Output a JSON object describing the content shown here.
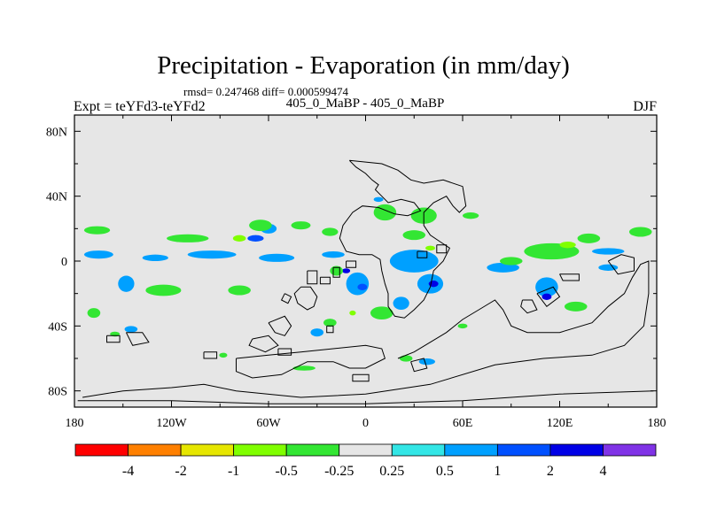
{
  "chart_data": {
    "type": "heatmap",
    "title": "Precipitation - Evaporation (in mm/day)",
    "stats": "rmsd= 0.247468  diff= 0.000599474",
    "left_label": "Expt = teYFd3-teYFd2",
    "center_label": "405_0_MaBP - 405_0_MaBP",
    "right_label": "DJF",
    "xlim": [
      -180,
      180
    ],
    "ylim": [
      -90,
      90
    ],
    "x_ticks": [
      {
        "value": -180,
        "label": "180"
      },
      {
        "value": -120,
        "label": "120W"
      },
      {
        "value": -60,
        "label": "60W"
      },
      {
        "value": 0,
        "label": "0"
      },
      {
        "value": 60,
        "label": "60E"
      },
      {
        "value": 120,
        "label": "120E"
      },
      {
        "value": 180,
        "label": "180"
      }
    ],
    "y_ticks": [
      {
        "value": 80,
        "label": "80N"
      },
      {
        "value": 40,
        "label": "40N"
      },
      {
        "value": 0,
        "label": "0"
      },
      {
        "value": -40,
        "label": "40S"
      },
      {
        "value": -80,
        "label": "80S"
      }
    ],
    "colorbar": {
      "colors": [
        "#ff0000",
        "#ff8000",
        "#e6e600",
        "#80ff00",
        "#33e633",
        "#e6e6e6",
        "#33e6e6",
        "#00a0ff",
        "#0050ff",
        "#0000e6",
        "#8033e6"
      ],
      "levels": [
        "-4",
        "-2",
        "-1",
        "-0.5",
        "-0.25",
        "0.25",
        "0.5",
        "1",
        "2",
        "4"
      ]
    },
    "background_color": "#e6e6e6",
    "regions": [
      {
        "lon": -165,
        "lat": 4,
        "w": 18,
        "h": 5,
        "level": "0.5"
      },
      {
        "lon": -130,
        "lat": 2,
        "w": 16,
        "h": 4,
        "level": "0.5"
      },
      {
        "lon": -95,
        "lat": 4,
        "w": 30,
        "h": 5,
        "level": "0.5"
      },
      {
        "lon": -55,
        "lat": 2,
        "w": 22,
        "h": 5,
        "level": "0.5"
      },
      {
        "lon": -20,
        "lat": 4,
        "w": 14,
        "h": 4,
        "level": "0.5"
      },
      {
        "lon": -60,
        "lat": 20,
        "w": 10,
        "h": 6,
        "level": "0.5"
      },
      {
        "lon": -68,
        "lat": 14,
        "w": 10,
        "h": 4,
        "level": "1"
      },
      {
        "lon": -148,
        "lat": -14,
        "w": 10,
        "h": 10,
        "level": "0.5"
      },
      {
        "lon": -145,
        "lat": -42,
        "w": 8,
        "h": 4,
        "level": "0.5"
      },
      {
        "lon": -5,
        "lat": -14,
        "w": 14,
        "h": 14,
        "level": "0.5"
      },
      {
        "lon": -2,
        "lat": -16,
        "w": 6,
        "h": 4,
        "level": "1"
      },
      {
        "lon": 30,
        "lat": 0,
        "w": 30,
        "h": 14,
        "level": "0.5"
      },
      {
        "lon": 40,
        "lat": -14,
        "w": 16,
        "h": 12,
        "level": "0.5"
      },
      {
        "lon": 42,
        "lat": -14,
        "w": 6,
        "h": 4,
        "level": "2"
      },
      {
        "lon": 22,
        "lat": -26,
        "w": 10,
        "h": 8,
        "level": "0.5"
      },
      {
        "lon": -12,
        "lat": -6,
        "w": 5,
        "h": 3,
        "level": "2"
      },
      {
        "lon": 112,
        "lat": -16,
        "w": 14,
        "h": 12,
        "level": "0.5"
      },
      {
        "lon": 112,
        "lat": -22,
        "w": 6,
        "h": 4,
        "level": "2"
      },
      {
        "lon": 85,
        "lat": -4,
        "w": 20,
        "h": 6,
        "level": "0.5"
      },
      {
        "lon": 150,
        "lat": -4,
        "w": 12,
        "h": 4,
        "level": "0.5"
      },
      {
        "lon": 150,
        "lat": 6,
        "w": 20,
        "h": 4,
        "level": "0.5"
      },
      {
        "lon": 8,
        "lat": 38,
        "w": 6,
        "h": 3,
        "level": "0.5"
      },
      {
        "lon": -30,
        "lat": -44,
        "w": 8,
        "h": 5,
        "level": "0.5"
      },
      {
        "lon": 38,
        "lat": -62,
        "w": 10,
        "h": 4,
        "level": "0.5"
      },
      {
        "lon": -166,
        "lat": 19,
        "w": 16,
        "h": 5,
        "level": "-0.25"
      },
      {
        "lon": -110,
        "lat": 14,
        "w": 26,
        "h": 5,
        "level": "-0.25"
      },
      {
        "lon": -65,
        "lat": 22,
        "w": 14,
        "h": 7,
        "level": "-0.25"
      },
      {
        "lon": -40,
        "lat": 22,
        "w": 12,
        "h": 5,
        "level": "-0.25"
      },
      {
        "lon": -22,
        "lat": 18,
        "w": 10,
        "h": 5,
        "level": "-0.25"
      },
      {
        "lon": 12,
        "lat": 30,
        "w": 14,
        "h": 10,
        "level": "-0.25"
      },
      {
        "lon": 36,
        "lat": 28,
        "w": 16,
        "h": 10,
        "level": "-0.25"
      },
      {
        "lon": 30,
        "lat": 16,
        "w": 14,
        "h": 6,
        "level": "-0.25"
      },
      {
        "lon": 65,
        "lat": 28,
        "w": 10,
        "h": 4,
        "level": "-0.25"
      },
      {
        "lon": 115,
        "lat": 6,
        "w": 34,
        "h": 10,
        "level": "-0.25"
      },
      {
        "lon": 138,
        "lat": 14,
        "w": 14,
        "h": 6,
        "level": "-0.25"
      },
      {
        "lon": 170,
        "lat": 18,
        "w": 14,
        "h": 6,
        "level": "-0.25"
      },
      {
        "lon": -125,
        "lat": -18,
        "w": 22,
        "h": 7,
        "level": "-0.25"
      },
      {
        "lon": -78,
        "lat": -18,
        "w": 14,
        "h": 6,
        "level": "-0.25"
      },
      {
        "lon": -18,
        "lat": -6,
        "w": 8,
        "h": 6,
        "level": "-0.25"
      },
      {
        "lon": 10,
        "lat": -32,
        "w": 14,
        "h": 8,
        "level": "-0.25"
      },
      {
        "lon": -22,
        "lat": -38,
        "w": 8,
        "h": 5,
        "level": "-0.25"
      },
      {
        "lon": 90,
        "lat": 0,
        "w": 14,
        "h": 5,
        "level": "-0.25"
      },
      {
        "lon": 130,
        "lat": -28,
        "w": 14,
        "h": 6,
        "level": "-0.25"
      },
      {
        "lon": -168,
        "lat": -32,
        "w": 8,
        "h": 6,
        "level": "-0.25"
      },
      {
        "lon": -155,
        "lat": -45,
        "w": 6,
        "h": 3,
        "level": "-0.25"
      },
      {
        "lon": 25,
        "lat": -60,
        "w": 8,
        "h": 4,
        "level": "-0.25"
      },
      {
        "lon": -38,
        "lat": -66,
        "w": 14,
        "h": 3,
        "level": "-0.25"
      },
      {
        "lon": -88,
        "lat": -58,
        "w": 5,
        "h": 3,
        "level": "-0.25"
      },
      {
        "lon": 60,
        "lat": -40,
        "w": 6,
        "h": 3,
        "level": "-0.25"
      },
      {
        "lon": -78,
        "lat": 14,
        "w": 8,
        "h": 4,
        "level": "-0.5"
      },
      {
        "lon": 125,
        "lat": 10,
        "w": 10,
        "h": 4,
        "level": "-0.5"
      },
      {
        "lon": 40,
        "lat": 8,
        "w": 6,
        "h": 3,
        "level": "-0.5"
      },
      {
        "lon": -8,
        "lat": -32,
        "w": 4,
        "h": 3,
        "level": "-0.5"
      }
    ],
    "coastlines": [
      [
        [
          -10,
          62
        ],
        [
          -6,
          58
        ],
        [
          0,
          54
        ],
        [
          4,
          50
        ],
        [
          8,
          47
        ],
        [
          6,
          44
        ],
        [
          10,
          40
        ],
        [
          14,
          36
        ],
        [
          22,
          38
        ],
        [
          30,
          36
        ],
        [
          34,
          31
        ],
        [
          26,
          28
        ],
        [
          18,
          29
        ],
        [
          8,
          33
        ],
        [
          -2,
          34
        ],
        [
          -8,
          30
        ],
        [
          -14,
          22
        ],
        [
          -16,
          14
        ],
        [
          -12,
          6
        ],
        [
          -4,
          4
        ],
        [
          4,
          4
        ],
        [
          9,
          1
        ],
        [
          10,
          -6
        ],
        [
          12,
          -14
        ],
        [
          14,
          -20
        ],
        [
          14,
          -28
        ],
        [
          18,
          -34
        ],
        [
          24,
          -35
        ],
        [
          30,
          -30
        ],
        [
          36,
          -24
        ],
        [
          40,
          -16
        ],
        [
          42,
          -6
        ],
        [
          48,
          0
        ],
        [
          52,
          8
        ],
        [
          46,
          12
        ],
        [
          40,
          16
        ],
        [
          36,
          22
        ],
        [
          36,
          30
        ],
        [
          42,
          36
        ],
        [
          50,
          40
        ],
        [
          54,
          34
        ],
        [
          58,
          30
        ],
        [
          62,
          34
        ],
        [
          60,
          46
        ],
        [
          48,
          50
        ],
        [
          36,
          48
        ],
        [
          28,
          50
        ],
        [
          20,
          56
        ],
        [
          10,
          60
        ],
        [
          -10,
          62
        ]
      ],
      [
        [
          32,
          6
        ],
        [
          38,
          6
        ],
        [
          38,
          2
        ],
        [
          32,
          2
        ],
        [
          32,
          6
        ]
      ],
      [
        [
          44,
          10
        ],
        [
          50,
          10
        ],
        [
          50,
          5
        ],
        [
          44,
          5
        ],
        [
          44,
          10
        ]
      ],
      [
        [
          -20,
          -4
        ],
        [
          -16,
          -4
        ],
        [
          -16,
          -10
        ],
        [
          -20,
          -10
        ],
        [
          -20,
          -4
        ]
      ],
      [
        [
          -36,
          -6
        ],
        [
          -30,
          -6
        ],
        [
          -30,
          -14
        ],
        [
          -36,
          -14
        ],
        [
          -36,
          -6
        ]
      ],
      [
        [
          -12,
          0
        ],
        [
          -6,
          0
        ],
        [
          -6,
          -4
        ],
        [
          -12,
          -4
        ],
        [
          -12,
          0
        ]
      ],
      [
        [
          -40,
          -16
        ],
        [
          -34,
          -16
        ],
        [
          -30,
          -22
        ],
        [
          -32,
          -28
        ],
        [
          -36,
          -30
        ],
        [
          -42,
          -26
        ],
        [
          -44,
          -20
        ],
        [
          -40,
          -16
        ]
      ],
      [
        [
          -50,
          -20
        ],
        [
          -46,
          -22
        ],
        [
          -48,
          -26
        ],
        [
          -52,
          -24
        ],
        [
          -50,
          -20
        ]
      ],
      [
        [
          -60,
          -38
        ],
        [
          -50,
          -34
        ],
        [
          -46,
          -40
        ],
        [
          -50,
          -46
        ],
        [
          -56,
          -44
        ],
        [
          -60,
          -38
        ]
      ],
      [
        [
          -70,
          -48
        ],
        [
          -60,
          -46
        ],
        [
          -54,
          -52
        ],
        [
          -62,
          -56
        ],
        [
          -72,
          -52
        ],
        [
          -70,
          -48
        ]
      ],
      [
        [
          -80,
          -60
        ],
        [
          -60,
          -58
        ],
        [
          -40,
          -56
        ],
        [
          -20,
          -54
        ],
        [
          0,
          -52
        ],
        [
          10,
          -54
        ],
        [
          12,
          -60
        ],
        [
          0,
          -66
        ],
        [
          -10,
          -66
        ],
        [
          -20,
          -62
        ],
        [
          -36,
          -62
        ],
        [
          -52,
          -70
        ],
        [
          -70,
          -72
        ],
        [
          -80,
          -68
        ],
        [
          -80,
          -60
        ]
      ],
      [
        [
          -175,
          -84
        ],
        [
          -150,
          -80
        ],
        [
          -120,
          -78
        ],
        [
          -100,
          -76
        ],
        [
          -80,
          -80
        ],
        [
          -40,
          -84
        ],
        [
          0,
          -82
        ],
        [
          40,
          -76
        ],
        [
          80,
          -64
        ],
        [
          110,
          -60
        ],
        [
          140,
          -58
        ],
        [
          160,
          -52
        ],
        [
          172,
          -40
        ],
        [
          175,
          -20
        ],
        [
          175,
          0
        ],
        [
          170,
          -2
        ],
        [
          165,
          -10
        ],
        [
          160,
          -20
        ],
        [
          150,
          -28
        ],
        [
          140,
          -38
        ],
        [
          120,
          -44
        ],
        [
          100,
          -44
        ],
        [
          90,
          -40
        ],
        [
          85,
          -30
        ],
        [
          80,
          -24
        ],
        [
          70,
          -30
        ],
        [
          60,
          -36
        ],
        [
          50,
          -44
        ],
        [
          40,
          -50
        ],
        [
          30,
          -56
        ],
        [
          20,
          -60
        ]
      ],
      [
        [
          -178,
          -86
        ],
        [
          -120,
          -86
        ],
        [
          -60,
          -88
        ],
        [
          0,
          -88
        ],
        [
          60,
          -86
        ],
        [
          120,
          -82
        ],
        [
          178,
          -80
        ]
      ],
      [
        [
          97,
          -24
        ],
        [
          103,
          -24
        ],
        [
          106,
          -30
        ],
        [
          100,
          -32
        ],
        [
          96,
          -28
        ],
        [
          97,
          -24
        ]
      ],
      [
        [
          106,
          -20
        ],
        [
          116,
          -16
        ],
        [
          120,
          -22
        ],
        [
          112,
          -28
        ],
        [
          106,
          -20
        ]
      ],
      [
        [
          120,
          -8
        ],
        [
          132,
          -8
        ],
        [
          132,
          -12
        ],
        [
          122,
          -12
        ],
        [
          120,
          -8
        ]
      ],
      [
        [
          150,
          0
        ],
        [
          158,
          4
        ],
        [
          166,
          2
        ],
        [
          166,
          -6
        ],
        [
          156,
          -8
        ],
        [
          150,
          0
        ]
      ],
      [
        [
          -148,
          -44
        ],
        [
          -138,
          -44
        ],
        [
          -134,
          -50
        ],
        [
          -144,
          -52
        ],
        [
          -148,
          -44
        ]
      ],
      [
        [
          -160,
          -46
        ],
        [
          -152,
          -46
        ],
        [
          -152,
          -50
        ],
        [
          -160,
          -50
        ],
        [
          -160,
          -46
        ]
      ],
      [
        [
          -100,
          -56
        ],
        [
          -92,
          -56
        ],
        [
          -92,
          -60
        ],
        [
          -100,
          -60
        ],
        [
          -100,
          -56
        ]
      ],
      [
        [
          -54,
          -54
        ],
        [
          -46,
          -54
        ],
        [
          -46,
          -58
        ],
        [
          -54,
          -58
        ],
        [
          -54,
          -54
        ]
      ],
      [
        [
          28,
          -62
        ],
        [
          36,
          -60
        ],
        [
          38,
          -66
        ],
        [
          30,
          -68
        ],
        [
          28,
          -62
        ]
      ],
      [
        [
          -8,
          -70
        ],
        [
          2,
          -70
        ],
        [
          2,
          -74
        ],
        [
          -8,
          -74
        ],
        [
          -8,
          -70
        ]
      ],
      [
        [
          -28,
          -10
        ],
        [
          -22,
          -10
        ],
        [
          -22,
          -14
        ],
        [
          -28,
          -14
        ],
        [
          -28,
          -10
        ]
      ],
      [
        [
          -24,
          -40
        ],
        [
          -20,
          -40
        ],
        [
          -20,
          -44
        ],
        [
          -24,
          -44
        ],
        [
          -24,
          -40
        ]
      ]
    ]
  }
}
